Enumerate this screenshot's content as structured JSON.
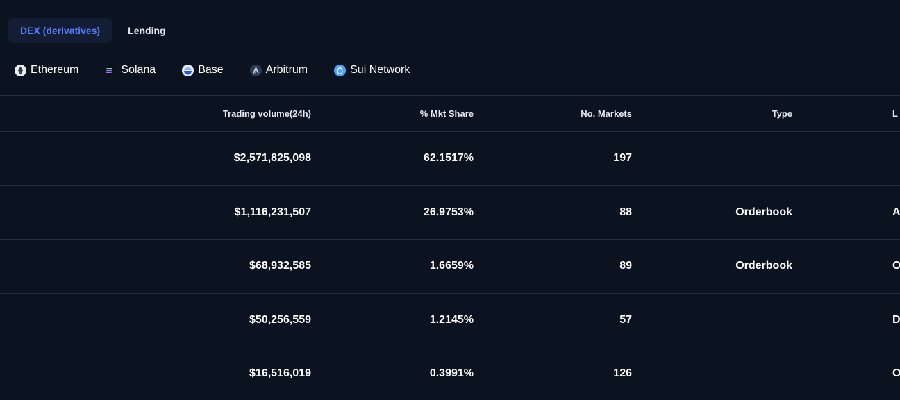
{
  "category_tabs": [
    {
      "label": "DEX (derivatives)",
      "active": true
    },
    {
      "label": "Lending",
      "active": false
    }
  ],
  "chains": [
    {
      "label": "Ethereum",
      "icon": "ethereum-icon"
    },
    {
      "label": "Solana",
      "icon": "solana-icon"
    },
    {
      "label": "Base",
      "icon": "base-icon"
    },
    {
      "label": "Arbitrum",
      "icon": "arbitrum-icon"
    },
    {
      "label": "Sui Network",
      "icon": "sui-icon"
    }
  ],
  "table": {
    "columns": [
      "Trading volume(24h)",
      "% Mkt Share",
      "No. Markets",
      "Type",
      "L"
    ],
    "rows": [
      {
        "volume": "$2,571,825,098",
        "share": "62.1517%",
        "markets": "197",
        "type": "",
        "last": ""
      },
      {
        "volume": "$1,116,231,507",
        "share": "26.9753%",
        "markets": "88",
        "type": "Orderbook",
        "last": "A"
      },
      {
        "volume": "$68,932,585",
        "share": "1.6659%",
        "markets": "89",
        "type": "Orderbook",
        "last": "O"
      },
      {
        "volume": "$50,256,559",
        "share": "1.2145%",
        "markets": "57",
        "type": "",
        "last": "D"
      },
      {
        "volume": "$16,516,019",
        "share": "0.3991%",
        "markets": "126",
        "type": "",
        "last": "O"
      }
    ]
  },
  "colors": {
    "background": "#0c1320",
    "active_tab_bg": "#131d33",
    "active_tab_text": "#5c7cff",
    "divider": "#252d3b"
  }
}
